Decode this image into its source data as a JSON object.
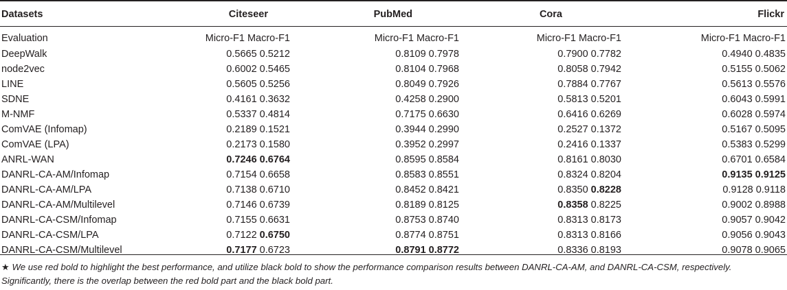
{
  "table": {
    "header": {
      "first": "Datasets",
      "datasets": [
        "Citeseer",
        "PubMed",
        "Cora",
        "Flickr"
      ]
    },
    "evaluation_label": "Evaluation",
    "metric_labels": [
      "Micro-F1",
      "Macro-F1"
    ],
    "rows": [
      {
        "method": "DeepWalk",
        "values": [
          [
            "0.5665",
            "0.5212"
          ],
          [
            "0.8109",
            "0.7978"
          ],
          [
            "0.7900",
            "0.7782"
          ],
          [
            "0.4940",
            "0.4835"
          ]
        ]
      },
      {
        "method": "node2vec",
        "values": [
          [
            "0.6002",
            "0.5465"
          ],
          [
            "0.8104",
            "0.7968"
          ],
          [
            "0.8058",
            "0.7942"
          ],
          [
            "0.5155",
            "0.5062"
          ]
        ]
      },
      {
        "method": "LINE",
        "values": [
          [
            "0.5605",
            "0.5256"
          ],
          [
            "0.8049",
            "0.7926"
          ],
          [
            "0.7884",
            "0.7767"
          ],
          [
            "0.5613",
            "0.5576"
          ]
        ]
      },
      {
        "method": "SDNE",
        "values": [
          [
            "0.4161",
            "0.3632"
          ],
          [
            "0.4258",
            "0.2900"
          ],
          [
            "0.5813",
            "0.5201"
          ],
          [
            "0.6043",
            "0.5991"
          ]
        ]
      },
      {
        "method": "M-NMF",
        "values": [
          [
            "0.5337",
            "0.4814"
          ],
          [
            "0.7175",
            "0.6630"
          ],
          [
            "0.6416",
            "0.6269"
          ],
          [
            "0.6028",
            "0.5974"
          ]
        ]
      },
      {
        "method": "ComVAE (Infomap)",
        "values": [
          [
            "0.2189",
            "0.1521"
          ],
          [
            "0.3944",
            "0.2990"
          ],
          [
            "0.2527",
            "0.1372"
          ],
          [
            "0.5167",
            "0.5095"
          ]
        ]
      },
      {
        "method": "ComVAE (LPA)",
        "values": [
          [
            "0.2173",
            "0.1580"
          ],
          [
            "0.3952",
            "0.2997"
          ],
          [
            "0.2416",
            "0.1337"
          ],
          [
            "0.5383",
            "0.5299"
          ]
        ]
      },
      {
        "method": "ANRL-WAN",
        "values": [
          [
            "0.7246",
            "0.6764"
          ],
          [
            "0.8595",
            "0.8584"
          ],
          [
            "0.8161",
            "0.8030"
          ],
          [
            "0.6701",
            "0.6584"
          ]
        ],
        "bold": [
          [
            true,
            true
          ],
          [
            false,
            false
          ],
          [
            false,
            false
          ],
          [
            false,
            false
          ]
        ]
      },
      {
        "method": "DANRL-CA-AM/Infomap",
        "values": [
          [
            "0.7154",
            "0.6658"
          ],
          [
            "0.8583",
            "0.8551"
          ],
          [
            "0.8324",
            "0.8204"
          ],
          [
            "0.9135",
            "0.9125"
          ]
        ],
        "bold": [
          [
            false,
            false
          ],
          [
            false,
            false
          ],
          [
            false,
            false
          ],
          [
            true,
            true
          ]
        ]
      },
      {
        "method": "DANRL-CA-AM/LPA",
        "values": [
          [
            "0.7138",
            "0.6710"
          ],
          [
            "0.8452",
            "0.8421"
          ],
          [
            "0.8350",
            "0.8228"
          ],
          [
            "0.9128",
            "0.9118"
          ]
        ],
        "bold": [
          [
            false,
            false
          ],
          [
            false,
            false
          ],
          [
            false,
            true
          ],
          [
            false,
            false
          ]
        ]
      },
      {
        "method": "DANRL-CA-AM/Multilevel",
        "values": [
          [
            "0.7146",
            "0.6739"
          ],
          [
            "0.8189",
            "0.8125"
          ],
          [
            "0.8358",
            "0.8225"
          ],
          [
            "0.9002",
            "0.8988"
          ]
        ],
        "bold": [
          [
            false,
            false
          ],
          [
            false,
            false
          ],
          [
            true,
            false
          ],
          [
            false,
            false
          ]
        ]
      },
      {
        "method": "DANRL-CA-CSM/Infomap",
        "values": [
          [
            "0.7155",
            "0.6631"
          ],
          [
            "0.8753",
            "0.8740"
          ],
          [
            "0.8313",
            "0.8173"
          ],
          [
            "0.9057",
            "0.9042"
          ]
        ]
      },
      {
        "method": "DANRL-CA-CSM/LPA",
        "values": [
          [
            "0.7122",
            "0.6750"
          ],
          [
            "0.8774",
            "0.8751"
          ],
          [
            "0.8313",
            "0.8166"
          ],
          [
            "0.9056",
            "0.9043"
          ]
        ],
        "bold": [
          [
            false,
            true
          ],
          [
            false,
            false
          ],
          [
            false,
            false
          ],
          [
            false,
            false
          ]
        ]
      },
      {
        "method": "DANRL-CA-CSM/Multilevel",
        "values": [
          [
            "0.7177",
            "0.6723"
          ],
          [
            "0.8791",
            "0.8772"
          ],
          [
            "0.8336",
            "0.8193"
          ],
          [
            "0.9078",
            "0.9065"
          ]
        ],
        "bold": [
          [
            true,
            false
          ],
          [
            true,
            true
          ],
          [
            false,
            false
          ],
          [
            false,
            false
          ]
        ]
      }
    ]
  },
  "footnote": {
    "star": "★",
    "line1": "We use red bold to highlight the best performance, and utilize black bold to show the performance comparison results between DANRL-CA-AM, and DANRL-CA-CSM, respectively.",
    "line2": "Significantly, there is the overlap between the red bold part and the black bold part."
  }
}
